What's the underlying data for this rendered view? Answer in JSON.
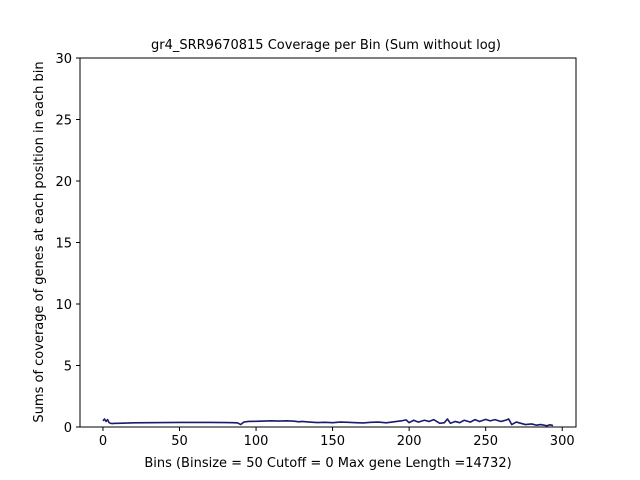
{
  "chart_data": {
    "type": "line",
    "title": "gr4_SRR9670815 Coverage per Bin (Sum without log)",
    "xlabel": "Bins  (Binsize = 50 Cutoff = 0 Max gene Length =14732)",
    "ylabel": "Sums of coverage of genes at each position in each bin",
    "xlim": [
      -15,
      309
    ],
    "ylim": [
      0,
      30
    ],
    "xticks": [
      0,
      50,
      100,
      150,
      200,
      250,
      300
    ],
    "xtick_labels": [
      "0",
      "50",
      "100",
      "150",
      "200",
      "250",
      "300"
    ],
    "yticks": [
      0,
      5,
      10,
      15,
      20,
      25,
      30
    ],
    "ytick_labels": [
      "0",
      "5",
      "10",
      "15",
      "20",
      "25",
      "30"
    ],
    "grid": false,
    "series": [
      {
        "color": "#1a1a6e",
        "x": [
          0,
          1,
          2,
          3,
          4,
          5,
          6,
          8,
          10,
          15,
          20,
          30,
          40,
          50,
          60,
          70,
          80,
          85,
          88,
          90,
          92,
          95,
          100,
          105,
          110,
          115,
          120,
          125,
          128,
          130,
          135,
          140,
          145,
          150,
          155,
          160,
          165,
          170,
          175,
          180,
          185,
          190,
          195,
          198,
          200,
          203,
          206,
          210,
          213,
          216,
          220,
          223,
          225,
          227,
          230,
          233,
          236,
          240,
          243,
          246,
          250,
          253,
          256,
          260,
          263,
          265,
          267,
          270,
          273,
          276,
          280,
          283,
          286,
          290,
          292,
          294
        ],
        "values": [
          0.5,
          0.65,
          0.45,
          0.6,
          0.35,
          0.3,
          0.28,
          0.3,
          0.3,
          0.32,
          0.34,
          0.35,
          0.36,
          0.37,
          0.37,
          0.37,
          0.36,
          0.35,
          0.33,
          0.2,
          0.4,
          0.45,
          0.46,
          0.48,
          0.5,
          0.48,
          0.5,
          0.47,
          0.42,
          0.45,
          0.4,
          0.36,
          0.38,
          0.35,
          0.4,
          0.38,
          0.35,
          0.33,
          0.38,
          0.4,
          0.34,
          0.42,
          0.5,
          0.58,
          0.35,
          0.55,
          0.4,
          0.55,
          0.45,
          0.6,
          0.3,
          0.35,
          0.65,
          0.3,
          0.45,
          0.35,
          0.55,
          0.4,
          0.6,
          0.45,
          0.62,
          0.5,
          0.6,
          0.45,
          0.55,
          0.65,
          0.2,
          0.4,
          0.3,
          0.2,
          0.25,
          0.15,
          0.2,
          0.1,
          0.18,
          0.12
        ]
      }
    ]
  }
}
